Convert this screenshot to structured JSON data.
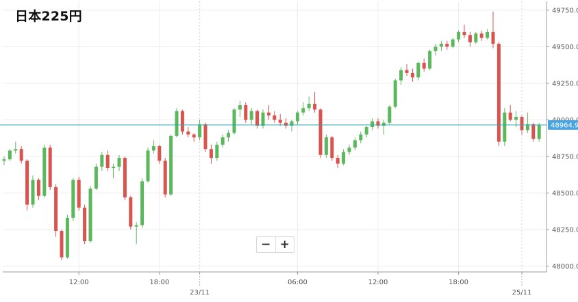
{
  "header": {
    "title": "日本225円"
  },
  "zoom": {
    "out_label": "−",
    "in_label": "+"
  },
  "colors": {
    "up": "#5cb85c",
    "down": "#d9534f",
    "last_price_line": "#2aa7b0",
    "price_tag_bg": "#4aa3df",
    "grid": "#ececec",
    "axis": "#9a9a9a"
  },
  "chart_data": {
    "type": "candlestick",
    "title": "日本225円",
    "last_price": 48964.9,
    "last_price_label": "48964.9",
    "y_ticks": [
      "48000.0",
      "48250.0",
      "48500.0",
      "48750.0",
      "49000.0",
      "49250.0",
      "49500.0",
      "49750.0"
    ],
    "ylim": [
      47960,
      49810
    ],
    "x_ticks": [
      {
        "label": "12:00",
        "sublabel": "",
        "index": 13
      },
      {
        "label": "18:00",
        "sublabel": "",
        "index": 27
      },
      {
        "label": "",
        "sublabel": "23/11",
        "index": 34
      },
      {
        "label": "06:00",
        "sublabel": "",
        "index": 51
      },
      {
        "label": "12:00",
        "sublabel": "",
        "index": 65
      },
      {
        "label": "18:00",
        "sublabel": "",
        "index": 79
      },
      {
        "label": "",
        "sublabel": "25/11",
        "index": 90
      }
    ],
    "grid": true,
    "candles": [
      [
        48720,
        48750,
        48690,
        48730
      ],
      [
        48730,
        48800,
        48720,
        48790
      ],
      [
        48790,
        48850,
        48770,
        48800
      ],
      [
        48800,
        48820,
        48700,
        48720
      ],
      [
        48720,
        48730,
        48380,
        48420
      ],
      [
        48420,
        48620,
        48400,
        48590
      ],
      [
        48590,
        48600,
        48450,
        48480
      ],
      [
        48480,
        48830,
        48470,
        48810
      ],
      [
        48810,
        48830,
        48520,
        48540
      ],
      [
        48540,
        48560,
        48200,
        48240
      ],
      [
        48240,
        48250,
        48040,
        48060
      ],
      [
        48060,
        48350,
        48050,
        48330
      ],
      [
        48330,
        48600,
        48310,
        48590
      ],
      [
        48590,
        48610,
        48380,
        48400
      ],
      [
        48400,
        48420,
        48150,
        48170
      ],
      [
        48170,
        48550,
        48160,
        48530
      ],
      [
        48530,
        48700,
        48520,
        48680
      ],
      [
        48680,
        48780,
        48650,
        48760
      ],
      [
        48760,
        48790,
        48650,
        48670
      ],
      [
        48670,
        48700,
        48600,
        48680
      ],
      [
        48680,
        48760,
        48650,
        48740
      ],
      [
        48740,
        48750,
        48450,
        48470
      ],
      [
        48470,
        48480,
        48250,
        48270
      ],
      [
        48270,
        48300,
        48150,
        48280
      ],
      [
        48280,
        48600,
        48260,
        48580
      ],
      [
        48580,
        48810,
        48570,
        48790
      ],
      [
        48790,
        48860,
        48770,
        48820
      ],
      [
        48820,
        48830,
        48700,
        48720
      ],
      [
        48720,
        48740,
        48470,
        48490
      ],
      [
        48490,
        48900,
        48480,
        48890
      ],
      [
        48890,
        49080,
        48880,
        49060
      ],
      [
        49060,
        49070,
        48900,
        48920
      ],
      [
        48920,
        48950,
        48880,
        48900
      ],
      [
        48900,
        48910,
        48850,
        48880
      ],
      [
        48880,
        49000,
        48860,
        48970
      ],
      [
        48970,
        48980,
        48780,
        48800
      ],
      [
        48800,
        48830,
        48700,
        48740
      ],
      [
        48740,
        48850,
        48720,
        48830
      ],
      [
        48830,
        48900,
        48810,
        48880
      ],
      [
        48880,
        48930,
        48850,
        48910
      ],
      [
        48910,
        49080,
        48900,
        49070
      ],
      [
        49070,
        49130,
        49020,
        49100
      ],
      [
        49100,
        49120,
        48980,
        49000
      ],
      [
        49000,
        49080,
        48970,
        49060
      ],
      [
        49060,
        49070,
        48940,
        48960
      ],
      [
        48960,
        49070,
        48940,
        49050
      ],
      [
        49050,
        49100,
        49000,
        49030
      ],
      [
        49030,
        49060,
        48980,
        49000
      ],
      [
        49000,
        49040,
        48960,
        48980
      ],
      [
        48980,
        49010,
        48940,
        48960
      ],
      [
        48960,
        49000,
        48920,
        48990
      ],
      [
        48990,
        49060,
        48970,
        49050
      ],
      [
        49050,
        49120,
        49030,
        49080
      ],
      [
        49080,
        49160,
        49060,
        49110
      ],
      [
        49110,
        49190,
        49050,
        49070
      ],
      [
        49070,
        49080,
        48740,
        48760
      ],
      [
        48760,
        48900,
        48740,
        48880
      ],
      [
        48880,
        48890,
        48720,
        48740
      ],
      [
        48740,
        48760,
        48670,
        48700
      ],
      [
        48700,
        48800,
        48690,
        48780
      ],
      [
        48780,
        48830,
        48760,
        48810
      ],
      [
        48810,
        48880,
        48790,
        48860
      ],
      [
        48860,
        48920,
        48840,
        48900
      ],
      [
        48900,
        48960,
        48880,
        48950
      ],
      [
        48950,
        49010,
        48930,
        48990
      ],
      [
        48990,
        49010,
        48940,
        48960
      ],
      [
        48960,
        49000,
        48900,
        48980
      ],
      [
        48980,
        49100,
        48970,
        49090
      ],
      [
        49090,
        49280,
        49080,
        49270
      ],
      [
        49270,
        49360,
        49240,
        49340
      ],
      [
        49340,
        49380,
        49300,
        49320
      ],
      [
        49320,
        49350,
        49260,
        49290
      ],
      [
        49290,
        49400,
        49270,
        49390
      ],
      [
        49390,
        49420,
        49330,
        49350
      ],
      [
        49350,
        49480,
        49340,
        49470
      ],
      [
        49470,
        49520,
        49440,
        49500
      ],
      [
        49500,
        49540,
        49470,
        49520
      ],
      [
        49520,
        49540,
        49480,
        49500
      ],
      [
        49500,
        49560,
        49490,
        49550
      ],
      [
        49550,
        49610,
        49530,
        49600
      ],
      [
        49600,
        49650,
        49560,
        49580
      ],
      [
        49580,
        49600,
        49500,
        49530
      ],
      [
        49530,
        49600,
        49520,
        49590
      ],
      [
        49590,
        49610,
        49540,
        49560
      ],
      [
        49560,
        49620,
        49550,
        49600
      ],
      [
        49600,
        49740,
        49490,
        49520
      ],
      [
        49520,
        49530,
        48820,
        48850
      ],
      [
        48850,
        49080,
        48820,
        49050
      ],
      [
        49050,
        49100,
        48990,
        49000
      ],
      [
        49000,
        49060,
        48950,
        49020
      ],
      [
        49020,
        49030,
        48900,
        48930
      ],
      [
        48930,
        49050,
        48910,
        48970
      ],
      [
        48970,
        48980,
        48850,
        48870
      ],
      [
        48870,
        48980,
        48850,
        48965
      ]
    ]
  }
}
